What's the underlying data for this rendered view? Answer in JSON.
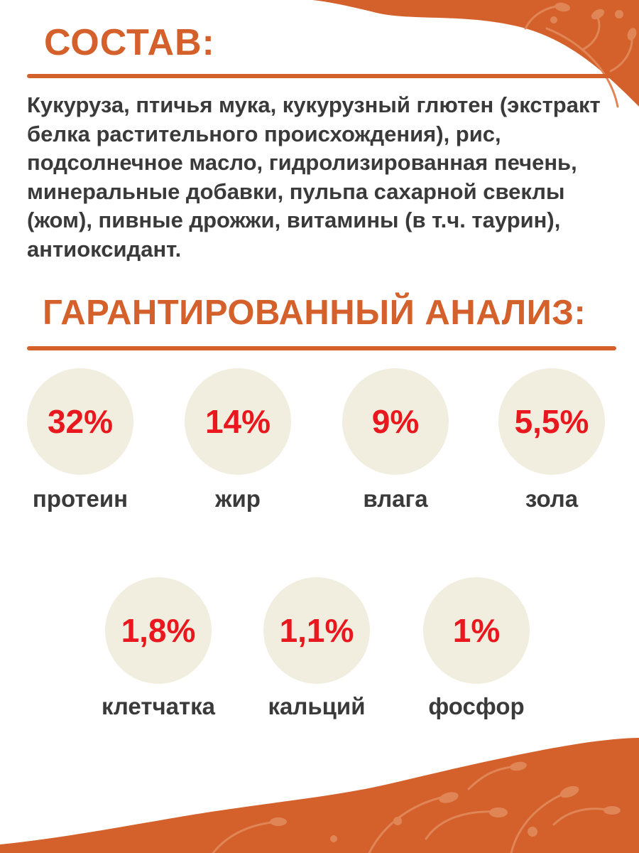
{
  "colors": {
    "accent_orange": "#d4612b",
    "value_red": "#e8181e",
    "circle_beige": "#f1eedf",
    "text_dark": "#3a3a3a"
  },
  "composition": {
    "title": "СОСТАВ:",
    "text": "Кукуруза, птичья мука, кукурузный глютен (экстракт белка растительного происхождения), рис, подсолнечное масло, гидролизированная печень, минеральные добавки, пульпа сахарной свеклы (жом), пивные дрожжи, витамины (в т.ч. таурин), антиоксидант."
  },
  "analysis": {
    "title": "ГАРАНТИРОВАННЫЙ АНАЛИЗ:",
    "stats": [
      {
        "value": "32%",
        "label": "протеин"
      },
      {
        "value": "14%",
        "label": "жир"
      },
      {
        "value": "9%",
        "label": "влага"
      },
      {
        "value": "5,5%",
        "label": "зола"
      },
      {
        "value": "1,8%",
        "label": "клетчатка"
      },
      {
        "value": "1,1%",
        "label": "кальций"
      },
      {
        "value": "1%",
        "label": "фосфор"
      }
    ]
  },
  "decorations": [
    "floral-corner-top-right",
    "floral-wave-bottom"
  ]
}
